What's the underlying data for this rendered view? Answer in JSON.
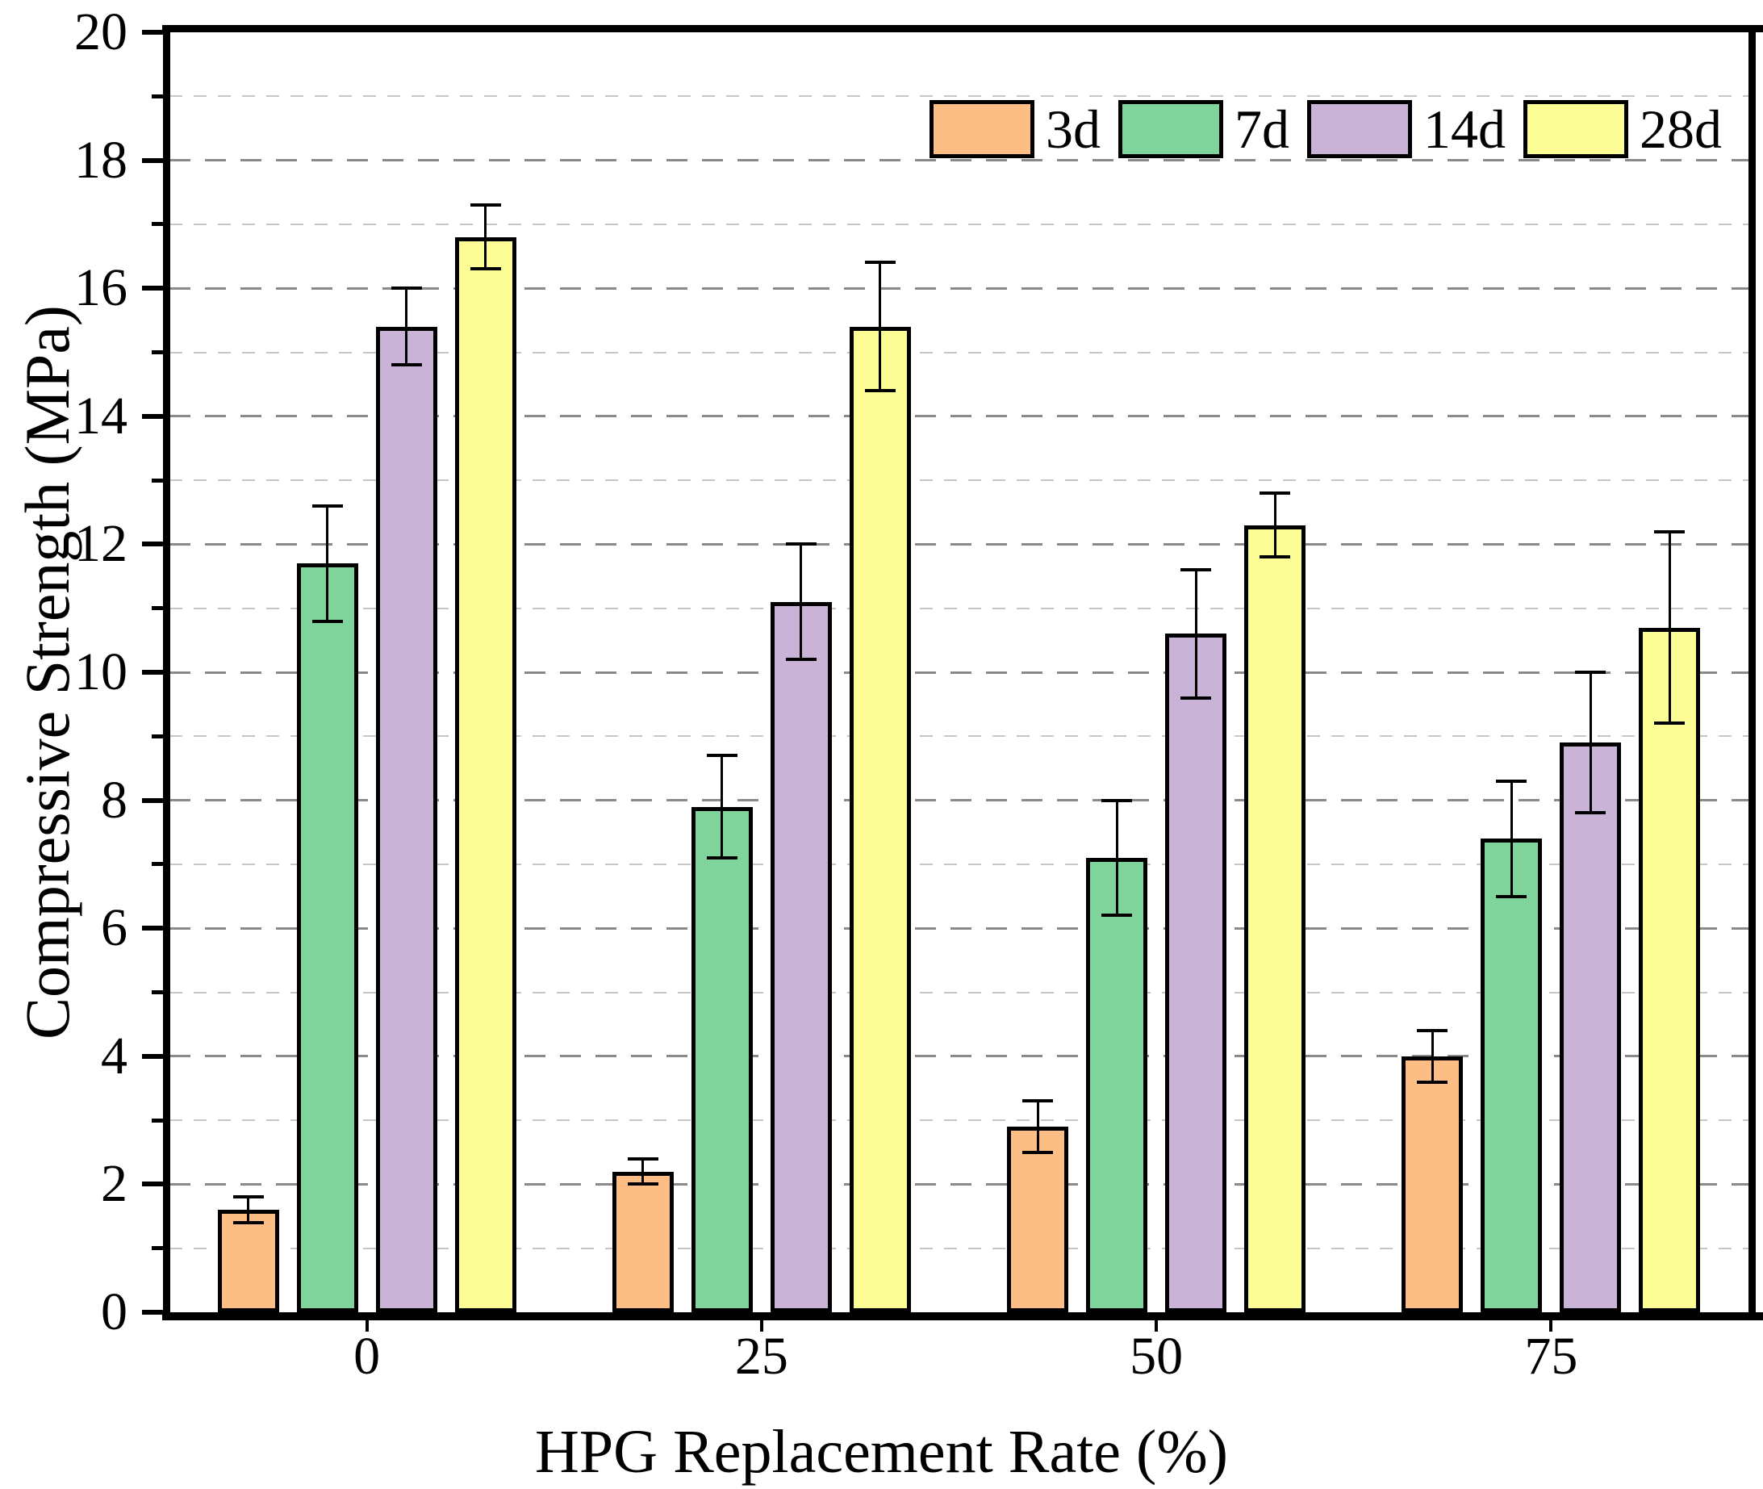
{
  "figure": {
    "x_title": "HPG Replacement Rate (%)",
    "y_title": "Compressive Strength (MPa)"
  },
  "chart_data": {
    "type": "bar",
    "title": "",
    "xlabel": "HPG Replacement Rate (%)",
    "ylabel": "Compressive Strength (MPa)",
    "categories": [
      "0",
      "25",
      "50",
      "75"
    ],
    "series": [
      {
        "name": "3d",
        "color": "#FCBE85",
        "values": [
          1.6,
          2.2,
          2.9,
          4.0
        ],
        "errors": [
          0.2,
          0.2,
          0.4,
          0.4
        ]
      },
      {
        "name": "7d",
        "color": "#7FD49B",
        "values": [
          11.7,
          7.9,
          7.1,
          7.4
        ],
        "errors": [
          0.9,
          0.8,
          0.9,
          0.9
        ]
      },
      {
        "name": "14d",
        "color": "#C9B4D8",
        "values": [
          15.4,
          11.1,
          10.6,
          8.9
        ],
        "errors": [
          0.6,
          0.9,
          1.0,
          1.1
        ]
      },
      {
        "name": "28d",
        "color": "#FDFD96",
        "values": [
          16.8,
          15.4,
          12.3,
          10.7
        ],
        "errors": [
          0.5,
          1.0,
          0.5,
          1.5
        ]
      }
    ],
    "ylim": [
      0,
      20
    ],
    "y_major_step": 2,
    "y_minor_step": 1,
    "y_tick_labels": [
      "0",
      "2",
      "4",
      "6",
      "8",
      "10",
      "12",
      "14",
      "16",
      "18",
      "20"
    ],
    "grid": "horizontal dashed, darker on major (even) values, lighter on minor (odd) values",
    "legend_position": "top-right inside plot, horizontal, no frame",
    "error_bars": true,
    "colors": {
      "axis": "#000000",
      "major_grid": "#8a8a8a",
      "minor_grid": "#c6c6c6",
      "background": "#ffffff"
    }
  }
}
